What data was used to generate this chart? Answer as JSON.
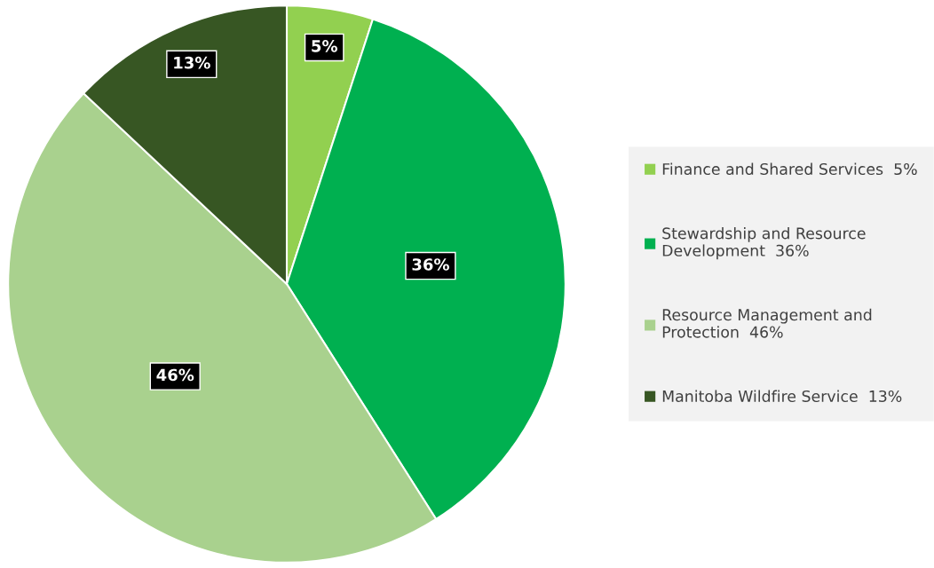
{
  "chart_data": {
    "type": "pie",
    "categories": [
      "Finance and Shared Services",
      "Stewardship and Resource Development",
      "Resource Management and Protection",
      "Manitoba Wildfire Service"
    ],
    "values": [
      5,
      36,
      46,
      13
    ],
    "value_labels": [
      "5%",
      "36%",
      "46%",
      "13%"
    ],
    "colors": [
      "#92d050",
      "#00b050",
      "#a9d18e",
      "#375623"
    ],
    "legend": "right"
  }
}
